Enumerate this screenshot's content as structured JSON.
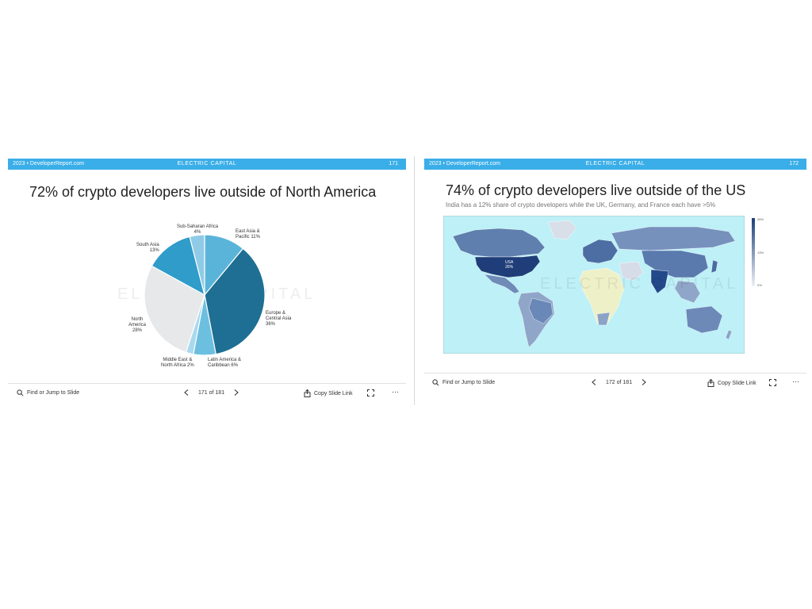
{
  "slides": [
    {
      "header": {
        "source": "2023 • DeveloperReport.com",
        "brand": "ELECTRIC CAPITAL",
        "page": "171"
      },
      "title": "72% of crypto developers live outside of North America",
      "watermark": "ELECTRIC CAPITAL",
      "chart_data": {
        "type": "pie",
        "title": "",
        "slices": [
          {
            "label": "East Asia & Pacific",
            "value": 11,
            "color": "#5ab4d9"
          },
          {
            "label": "Europe & Central Asia",
            "value": 36,
            "color": "#1e6f93"
          },
          {
            "label": "Latin America & Caribbean",
            "value": 6,
            "color": "#6dbfe0"
          },
          {
            "label": "Middle East & North Africa",
            "value": 2,
            "color": "#a9d9ee"
          },
          {
            "label": "North America",
            "value": 28,
            "color": "#e7e8ea"
          },
          {
            "label": "South Asia",
            "value": 13,
            "color": "#2f9cca"
          },
          {
            "label": "Sub-Saharan Africa",
            "value": 4,
            "color": "#8fcbe6"
          }
        ]
      },
      "labels": {
        "east_asia": {
          "name1": "East Asia &",
          "name2": "Pacific 11%"
        },
        "europe": {
          "name1": "Europe &",
          "name2": "Central Asia",
          "pct": "36%"
        },
        "latam": {
          "name1": "Latin America &",
          "name2": "Caribbean 6%"
        },
        "mena": {
          "name1": "Middle East &",
          "name2": "North Africa 2%"
        },
        "north_america": {
          "name1": "North",
          "name2": "America",
          "pct": "28%"
        },
        "south_asia": {
          "name1": "South Asia",
          "pct": "13%"
        },
        "ssa": {
          "name1": "Sub-Saharan Africa",
          "pct": "4%"
        }
      },
      "toolbar": {
        "find": "Find or Jump to Slide",
        "pager": "171 of 181",
        "copy": "Copy Slide Link"
      }
    },
    {
      "header": {
        "source": "2023 • DeveloperReport.com",
        "brand": "ELECTRIC CAPITAL",
        "page": "172"
      },
      "title": "74% of crypto developers live outside of the US",
      "subtitle": "India has a 12% share of crypto developers while the UK, Germany, and France each have >5%",
      "watermark": "ELECTRIC CAPITAL",
      "map": {
        "ocean_color": "#bdf0f7",
        "usa_label": "USA",
        "usa_pct": "26%",
        "legend_ticks": [
          "26%",
          "13%",
          "0%"
        ],
        "legend_top_color": "#1b3f7a",
        "legend_bottom_color": "#eef1f6"
      },
      "toolbar": {
        "find": "Find or Jump to Slide",
        "pager": "172 of 181",
        "copy": "Copy Slide Link"
      }
    }
  ]
}
